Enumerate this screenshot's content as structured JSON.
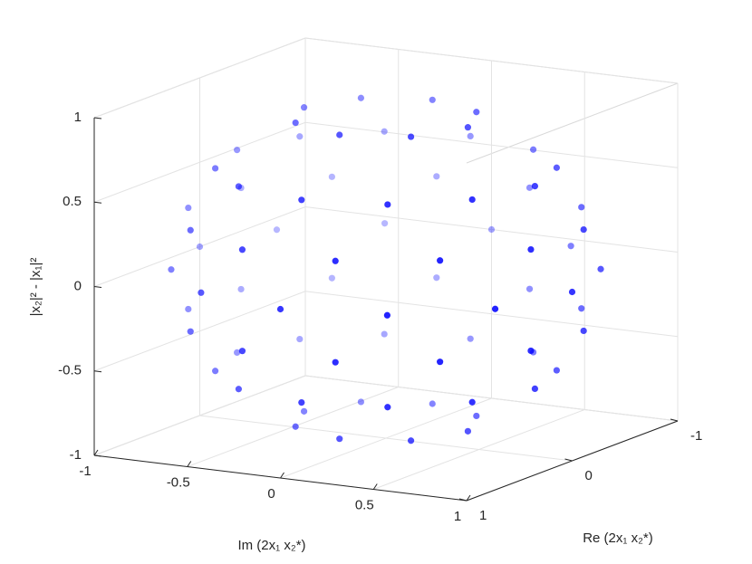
{
  "chart_data": {
    "type": "scatter3d",
    "xlabel": "Re (2x₁ x₂*)",
    "ylabel": "Im (2x₁ x₂*)",
    "zlabel": "|x₂|² - |x₁|²",
    "color": "#0000ff",
    "x": [
      0.44,
      0.31,
      0,
      -0.31,
      -0.44,
      -0.31,
      0,
      0.31,
      0.8,
      0.69,
      0.4,
      0,
      -0.4,
      -0.69,
      -0.8,
      -0.69,
      -0.4,
      0,
      0.4,
      0.69,
      0.92,
      0.67,
      0.25,
      -0.25,
      -0.67,
      -0.92,
      -0.92,
      -0.67,
      -0.25,
      0.25,
      0.67,
      0.92,
      1,
      0.87,
      0.5,
      0,
      -0.5,
      -0.87,
      -1,
      -0.87,
      -0.5,
      0,
      0.5,
      0.87,
      0.92,
      0.67,
      0.25,
      -0.25,
      -0.67,
      -0.92,
      -0.92,
      -0.67,
      -0.25,
      0.25,
      0.67,
      0.92,
      0.8,
      0.69,
      0.4,
      0,
      -0.4,
      -0.69,
      -0.8,
      -0.69,
      -0.4,
      0,
      0.4,
      0.69,
      0.44,
      0.31,
      0,
      -0.31,
      -0.44,
      -0.31,
      0,
      0.31
    ],
    "y": [
      0,
      0.31,
      0.44,
      0.31,
      0,
      -0.31,
      -0.44,
      -0.31,
      0,
      0.4,
      0.69,
      0.8,
      0.69,
      0.4,
      0,
      -0.4,
      -0.69,
      -0.8,
      -0.69,
      -0.4,
      0.25,
      0.67,
      0.92,
      0.92,
      0.67,
      0.25,
      -0.25,
      -0.67,
      -0.92,
      -0.92,
      -0.67,
      -0.25,
      0,
      0.5,
      0.87,
      1,
      0.87,
      0.5,
      0,
      -0.5,
      -0.87,
      -1,
      -0.87,
      -0.5,
      0.25,
      0.67,
      0.92,
      0.92,
      0.67,
      0.25,
      -0.25,
      -0.67,
      -0.92,
      -0.92,
      -0.67,
      -0.25,
      0,
      0.4,
      0.69,
      0.8,
      0.69,
      0.4,
      0,
      -0.4,
      -0.69,
      -0.8,
      -0.69,
      -0.4,
      0,
      0.31,
      0.44,
      0.31,
      0,
      -0.31,
      -0.44,
      -0.31
    ],
    "z": [
      -0.9,
      -0.9,
      -0.9,
      -0.9,
      -0.9,
      -0.9,
      -0.9,
      -0.9,
      -0.6,
      -0.6,
      -0.6,
      -0.6,
      -0.6,
      -0.6,
      -0.6,
      -0.6,
      -0.6,
      -0.6,
      -0.6,
      -0.6,
      -0.3,
      -0.3,
      -0.3,
      -0.3,
      -0.3,
      -0.3,
      -0.3,
      -0.3,
      -0.3,
      -0.3,
      -0.3,
      -0.3,
      0,
      0,
      0,
      0,
      0,
      0,
      0,
      0,
      0,
      0,
      0,
      0,
      0.3,
      0.3,
      0.3,
      0.3,
      0.3,
      0.3,
      0.3,
      0.3,
      0.3,
      0.3,
      0.3,
      0.3,
      0.6,
      0.6,
      0.6,
      0.6,
      0.6,
      0.6,
      0.6,
      0.6,
      0.6,
      0.6,
      0.6,
      0.6,
      0.9,
      0.9,
      0.9,
      0.9,
      0.9,
      0.9,
      0.9,
      0.9
    ],
    "xlim": [
      -1,
      1
    ],
    "xticks": [
      -1,
      0,
      1
    ],
    "ylim": [
      -1,
      1
    ],
    "yticks": [
      -1,
      -0.5,
      0,
      0.5,
      1
    ],
    "zlim": [
      -1,
      1
    ],
    "zticks": [
      -1,
      -0.5,
      0,
      0.5,
      1
    ],
    "grid": true
  }
}
